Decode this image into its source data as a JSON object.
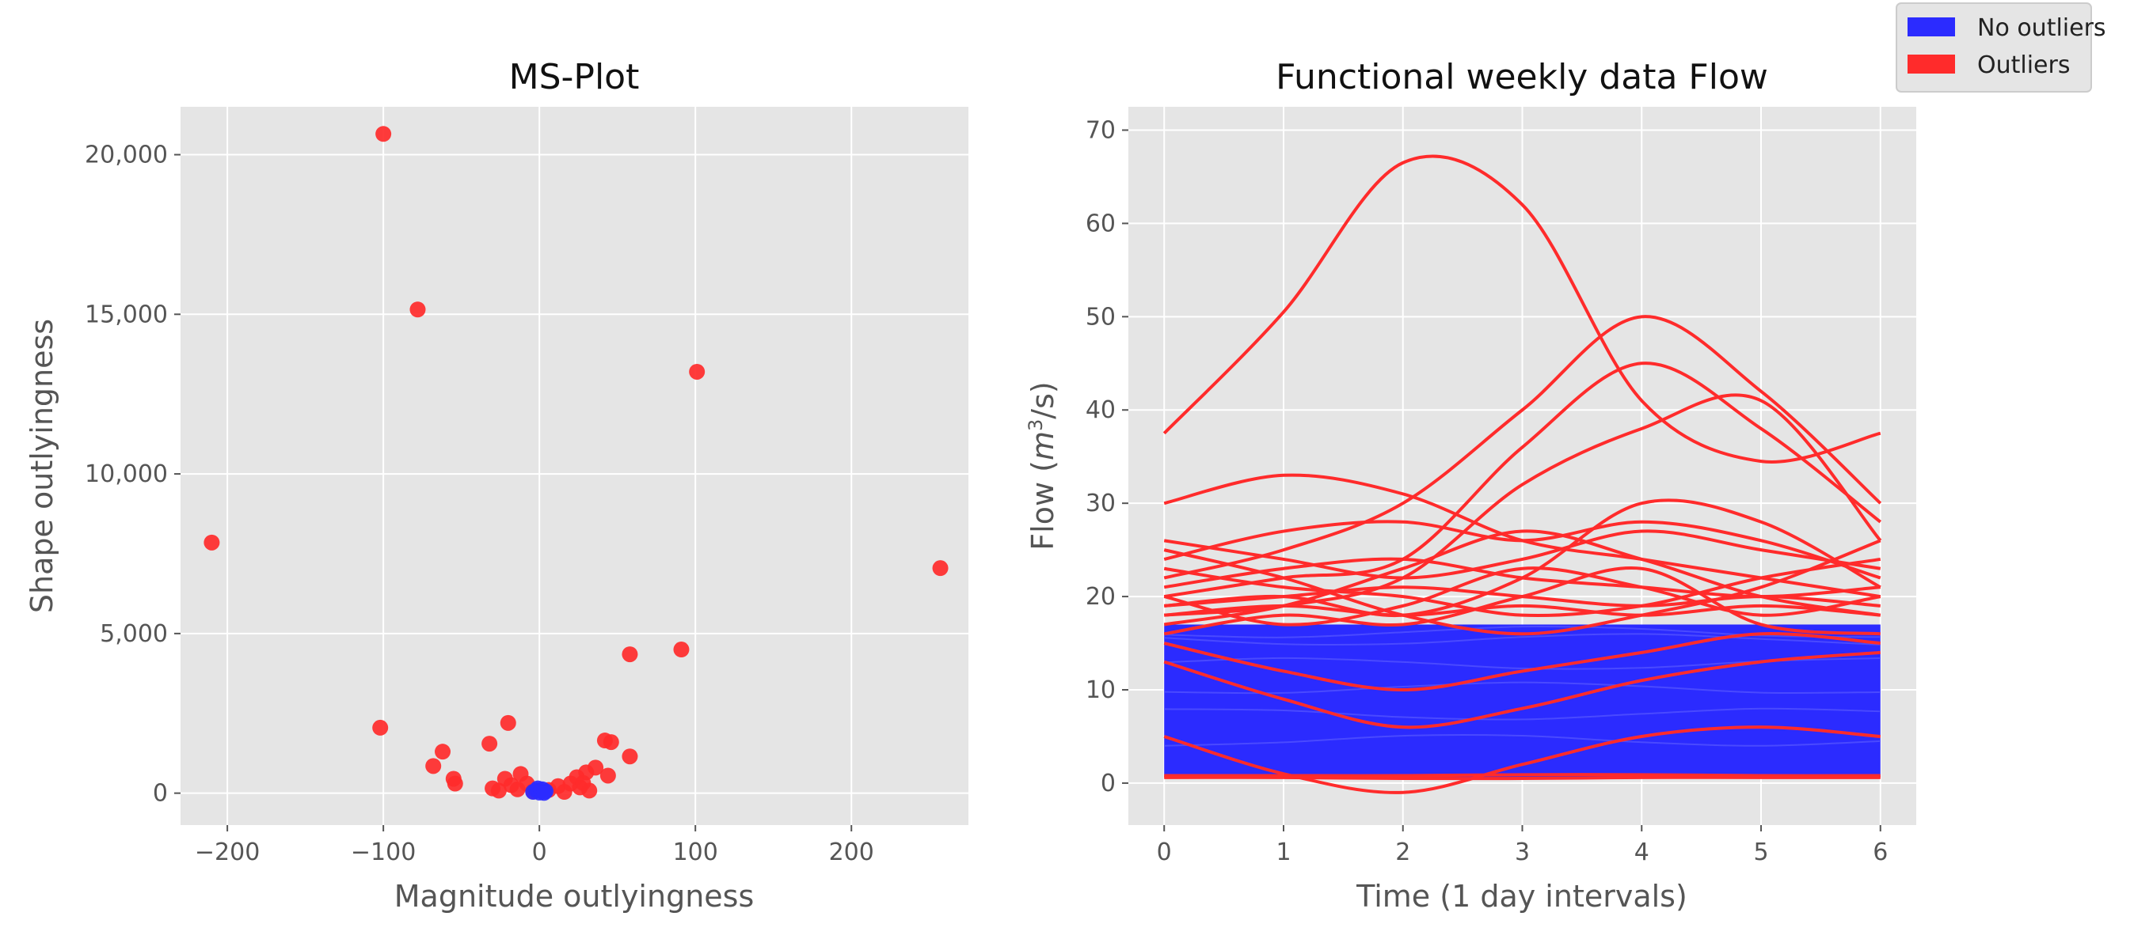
{
  "chart_data": [
    {
      "type": "scatter",
      "title": "MS-Plot",
      "xlabel": "Magnitude outlyingness",
      "ylabel": "Shape outlyingness",
      "xlim": [
        -230,
        275
      ],
      "ylim": [
        -1000,
        21500
      ],
      "grid": true,
      "xticks": [
        -200,
        -100,
        0,
        100,
        200
      ],
      "xtick_labels": [
        "−200",
        "−100",
        "0",
        "100",
        "200"
      ],
      "yticks": [
        0,
        5000,
        10000,
        15000,
        20000
      ],
      "ytick_labels": [
        "0",
        "5,000",
        "10,000",
        "15,000",
        "20,000"
      ],
      "series": [
        {
          "name": "Outliers",
          "color": "#ff2b2b",
          "points": [
            [
              -100,
              20650
            ],
            [
              -78,
              15150
            ],
            [
              101,
              13200
            ],
            [
              -210,
              7850
            ],
            [
              257,
              7050
            ],
            [
              91,
              4500
            ],
            [
              58,
              4350
            ],
            [
              -102,
              2050
            ],
            [
              -20,
              2200
            ],
            [
              42,
              1650
            ],
            [
              -32,
              1550
            ],
            [
              46,
              1600
            ],
            [
              58,
              1150
            ],
            [
              -62,
              1300
            ],
            [
              -68,
              850
            ],
            [
              -55,
              450
            ],
            [
              -54,
              300
            ],
            [
              36,
              800
            ],
            [
              -12,
              600
            ],
            [
              44,
              550
            ],
            [
              30,
              650
            ],
            [
              24,
              500
            ],
            [
              -30,
              150
            ],
            [
              -26,
              80
            ],
            [
              -22,
              450
            ],
            [
              -18,
              250
            ],
            [
              -14,
              120
            ],
            [
              -8,
              300
            ],
            [
              -4,
              60
            ],
            [
              6,
              100
            ],
            [
              12,
              220
            ],
            [
              16,
              40
            ],
            [
              20,
              300
            ],
            [
              26,
              180
            ],
            [
              28,
              320
            ],
            [
              32,
              80
            ]
          ]
        },
        {
          "name": "No outliers",
          "color": "#2b2bff",
          "points": [
            [
              -4,
              40
            ],
            [
              -2,
              90
            ],
            [
              0,
              20
            ],
            [
              2,
              120
            ],
            [
              4,
              60
            ],
            [
              -1,
              150
            ],
            [
              1,
              70
            ],
            [
              3,
              10
            ]
          ]
        }
      ]
    },
    {
      "type": "line",
      "title": "Functional weekly data Flow",
      "xlabel": "Time (1 day intervals)",
      "ylabel_prefix": "Flow (",
      "ylabel_math": "m",
      "ylabel_sup": "3",
      "ylabel_suffix": "/s)",
      "xlim": [
        -0.3,
        6.3
      ],
      "ylim": [
        -4.5,
        72.5
      ],
      "grid": true,
      "xticks": [
        0,
        1,
        2,
        3,
        4,
        5,
        6
      ],
      "xtick_labels": [
        "0",
        "1",
        "2",
        "3",
        "4",
        "5",
        "6"
      ],
      "yticks": [
        0,
        10,
        20,
        30,
        40,
        50,
        60,
        70
      ],
      "ytick_labels": [
        "0",
        "10",
        "20",
        "30",
        "40",
        "50",
        "60",
        "70"
      ],
      "x": [
        0,
        1,
        2,
        3,
        4,
        5,
        6
      ],
      "blue_band": {
        "name": "No outliers",
        "color": "#2b2bff",
        "low": 0.6,
        "high": 17
      },
      "series": [
        {
          "name": "Outliers",
          "color": "#ff2b2b",
          "values": [
            37.5,
            50.5,
            66.5,
            62,
            41,
            34.5,
            37.5
          ]
        },
        {
          "name": "Outliers",
          "color": "#ff2b2b",
          "values": [
            22,
            25,
            30,
            40,
            50,
            42,
            30
          ]
        },
        {
          "name": "Outliers",
          "color": "#ff2b2b",
          "values": [
            20,
            22,
            24,
            36,
            45,
            38,
            28
          ]
        },
        {
          "name": "Outliers",
          "color": "#ff2b2b",
          "values": [
            18,
            19,
            22,
            32,
            38,
            41,
            26
          ]
        },
        {
          "name": "Outliers",
          "color": "#ff2b2b",
          "values": [
            30,
            33,
            31,
            26,
            24,
            22,
            20
          ]
        },
        {
          "name": "Outliers",
          "color": "#ff2b2b",
          "values": [
            24,
            27,
            28,
            26,
            28,
            26,
            22
          ]
        },
        {
          "name": "Outliers",
          "color": "#ff2b2b",
          "values": [
            26,
            24,
            22,
            24,
            27,
            25,
            23
          ]
        },
        {
          "name": "Outliers",
          "color": "#ff2b2b",
          "values": [
            21,
            23,
            24,
            22,
            21,
            20,
            21
          ]
        },
        {
          "name": "Outliers",
          "color": "#ff2b2b",
          "values": [
            19,
            20,
            21,
            20,
            19,
            20,
            19
          ]
        },
        {
          "name": "Outliers",
          "color": "#ff2b2b",
          "values": [
            18,
            19,
            18,
            19,
            18,
            19,
            18
          ]
        },
        {
          "name": "Outliers",
          "color": "#ff2b2b",
          "values": [
            20,
            17,
            19,
            23,
            21,
            18,
            20
          ]
        },
        {
          "name": "Outliers",
          "color": "#ff2b2b",
          "values": [
            23,
            21,
            20,
            18,
            19,
            22,
            24
          ]
        },
        {
          "name": "Outliers",
          "color": "#ff2b2b",
          "values": [
            25,
            22,
            18,
            16,
            18,
            21,
            26
          ]
        },
        {
          "name": "Outliers",
          "color": "#ff2b2b",
          "values": [
            17,
            19,
            23,
            27,
            24,
            20,
            18
          ]
        },
        {
          "name": "Outliers",
          "color": "#ff2b2b",
          "values": [
            19,
            20,
            18,
            22,
            30,
            28,
            21
          ]
        },
        {
          "name": "Outliers",
          "color": "#ff2b2b",
          "values": [
            16,
            18,
            17,
            20,
            23,
            17,
            16
          ]
        },
        {
          "name": "Outliers",
          "color": "#ff2b2b",
          "values": [
            5,
            1,
            -1,
            2,
            5,
            6,
            5
          ]
        },
        {
          "name": "Outliers",
          "color": "#ff2b2b",
          "values": [
            13,
            9,
            6,
            8,
            11,
            13,
            14
          ]
        },
        {
          "name": "Outliers",
          "color": "#ff2b2b",
          "values": [
            15,
            12,
            10,
            12,
            14,
            16,
            15
          ]
        },
        {
          "name": "Outliers",
          "color": "#ff2b2b",
          "values": [
            0.6,
            0.6,
            0.5,
            0.5,
            0.6,
            0.6,
            0.6
          ]
        },
        {
          "name": "Outliers",
          "color": "#ff2b2b",
          "values": [
            0.8,
            0.8,
            0.8,
            0.9,
            0.9,
            0.8,
            0.8
          ]
        }
      ]
    }
  ],
  "legend": {
    "placement": "top-right",
    "items": [
      {
        "label": "No outliers",
        "color": "#2b2bff"
      },
      {
        "label": "Outliers",
        "color": "#ff2b2b"
      }
    ]
  }
}
